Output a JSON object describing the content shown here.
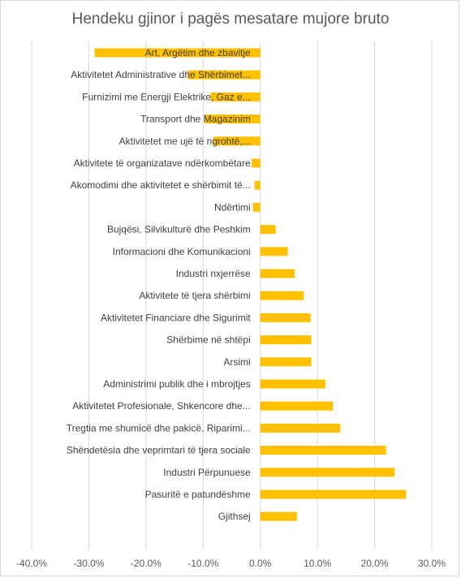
{
  "chart_data": {
    "type": "bar",
    "orientation": "horizontal",
    "title": "Hendeku gjinor i pagës mesatare mujore bruto",
    "xlabel": "",
    "ylabel": "",
    "xlim": [
      -0.4,
      0.3
    ],
    "x_ticks": [
      -0.4,
      -0.3,
      -0.2,
      -0.1,
      0.0,
      0.1,
      0.2,
      0.3
    ],
    "x_tick_labels": [
      "-40.0%",
      "-30.0%",
      "-20.0%",
      "-10.0%",
      "0.0%",
      "10.0%",
      "20.0%",
      "30.0%"
    ],
    "grid": true,
    "legend": "none",
    "bar_color": "#ffc000",
    "categories": [
      "Art, Argëtim dhe zbavitje",
      "Aktivitetet Administrative dhe Shërbimet...",
      "Furnizimi me Energji Elektrike, Gaz e...",
      "Transport dhe Magazinim",
      "Aktivitetet me ujë të ngrohtë,...",
      "Aktivitete të organizatave ndërkombëtare",
      "Akomodimi dhe aktivitetet e shërbimit të...",
      "Ndërtimi",
      "Bujqësi, Silvikulturë dhe Peshkim",
      "Informacioni dhe Komunikacioni",
      "Industri nxjerrëse",
      "Aktivitete të tjera shërbimi",
      "Aktivitetet Financiare dhe Sigurimit",
      "Shërbime në shtëpi",
      "Arsimi",
      "Administrimi publik dhe i mbrojtjes",
      "Aktivitetet Profesionale, Shkencore dhe...",
      "Tregtia me shumicë dhe pakicë. Riparimi...",
      "Shëndetësia dhe veprimtari të tjera sociale",
      "Industri Përpunuese",
      "Pasuritë e patundëshme",
      "Gjithsej"
    ],
    "values": [
      -0.29,
      -0.127,
      -0.087,
      -0.098,
      -0.082,
      -0.015,
      -0.01,
      -0.013,
      0.027,
      0.048,
      0.06,
      0.076,
      0.088,
      0.089,
      0.089,
      0.114,
      0.127,
      0.14,
      0.22,
      0.235,
      0.255,
      0.064
    ]
  }
}
